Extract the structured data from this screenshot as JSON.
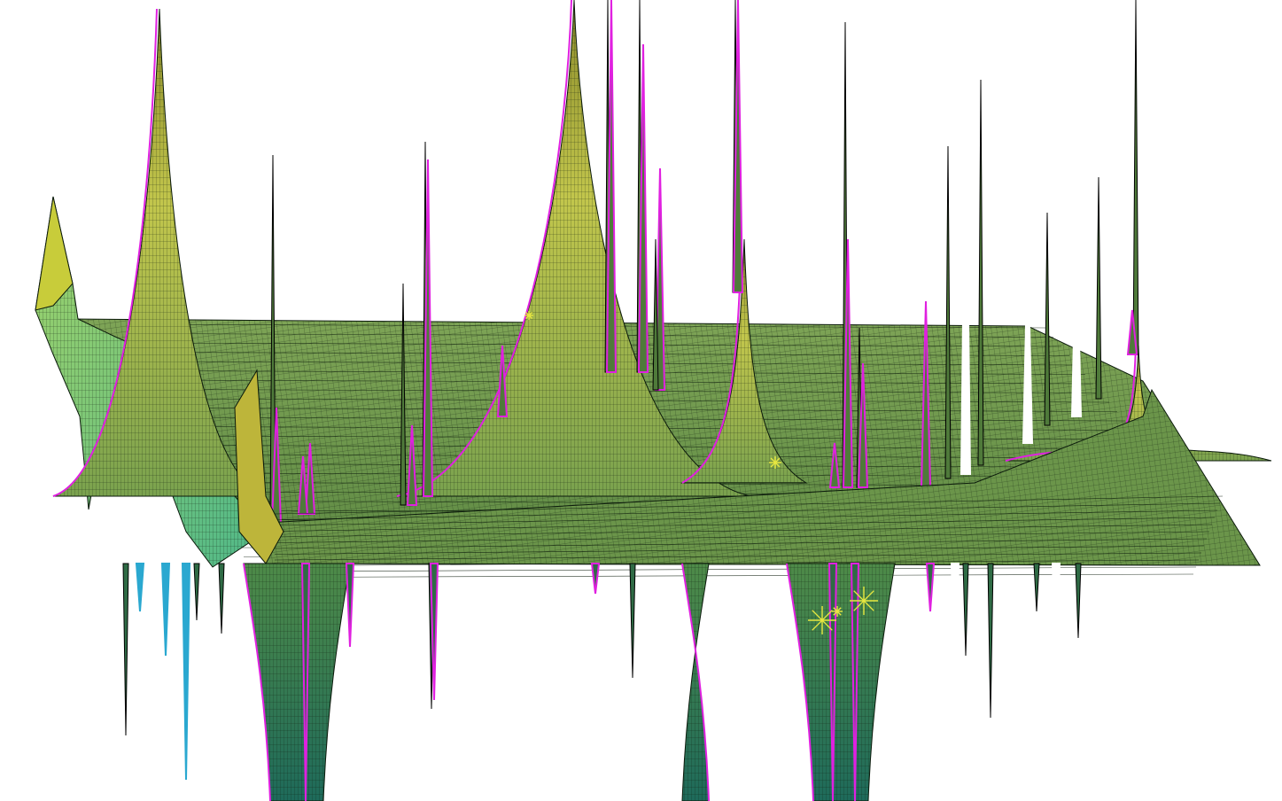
{
  "scene": {
    "kind": "3d-surface-plot",
    "background": "#ffffff",
    "surface_color": "#6f9a4e",
    "surface_highlight": "#b9c24a",
    "surface_shadow": "#2f6b45",
    "mesh_line_color": "#0b1a0b",
    "spike_edge_color": "#e020e0",
    "left_region_color": "#6fd08a",
    "left_spike_color": "#2aa8d0",
    "marker_color": "#e8e840",
    "marker_icon": "star-marker-icon"
  }
}
